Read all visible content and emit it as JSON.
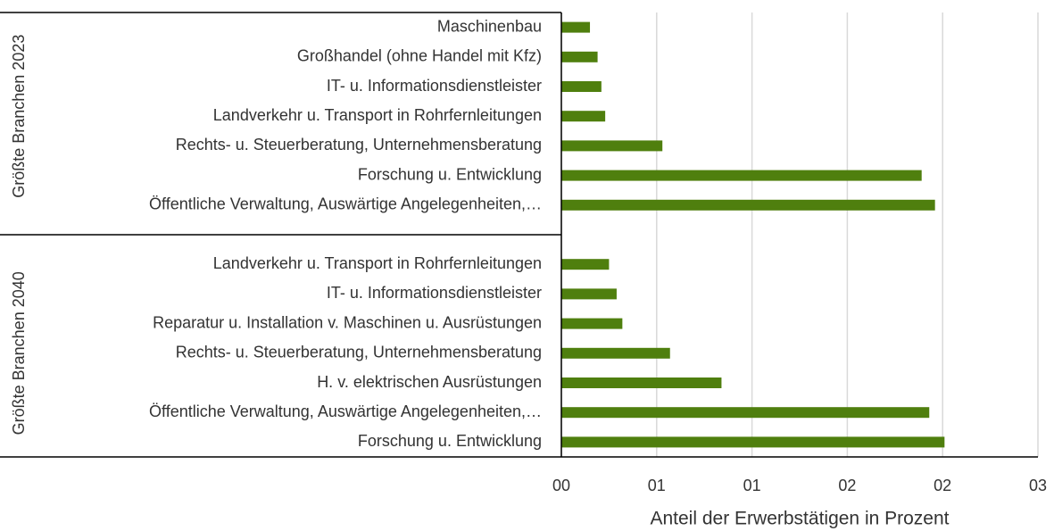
{
  "chart_data": {
    "type": "bar",
    "orientation": "horizontal",
    "color": "#4f7f0e",
    "grid": true,
    "xlabel": "Anteil der Erwerbstätigen in Prozent",
    "xlim": [
      0,
      2.5
    ],
    "xticks": [
      {
        "value": 0,
        "label": "00"
      },
      {
        "value": 0.5,
        "label": "01"
      },
      {
        "value": 1,
        "label": "01"
      },
      {
        "value": 1.5,
        "label": "02"
      },
      {
        "value": 2,
        "label": "02"
      },
      {
        "value": 2.5,
        "label": "03"
      }
    ],
    "groups": [
      {
        "label": "Größte Branchen 2023",
        "categories": [
          "Maschinenbau",
          "Großhandel (ohne Handel mit Kfz)",
          "IT- u. Informationsdienstleister",
          "Landverkehr u. Transport in Rohrfernleitungen",
          "Rechts- u. Steuerberatung, Unternehmensberatung",
          "Forschung u. Entwicklung",
          "Öffentliche Verwaltung, Auswärtige Angelegenheiten,…"
        ],
        "values": [
          0.15,
          0.19,
          0.21,
          0.23,
          0.53,
          1.89,
          1.96
        ]
      },
      {
        "label": "Größte Branchen 2040",
        "categories": [
          "Landverkehr u. Transport in Rohrfernleitungen",
          "IT- u. Informationsdienstleister",
          "Reparatur u. Installation v. Maschinen u. Ausrüstungen",
          "Rechts- u. Steuerberatung, Unternehmensberatung",
          "H. v. elektrischen Ausrüstungen",
          "Öffentliche Verwaltung, Auswärtige Angelegenheiten,…",
          "Forschung u. Entwicklung"
        ],
        "values": [
          0.25,
          0.29,
          0.32,
          0.57,
          0.84,
          1.93,
          2.01
        ]
      }
    ]
  }
}
